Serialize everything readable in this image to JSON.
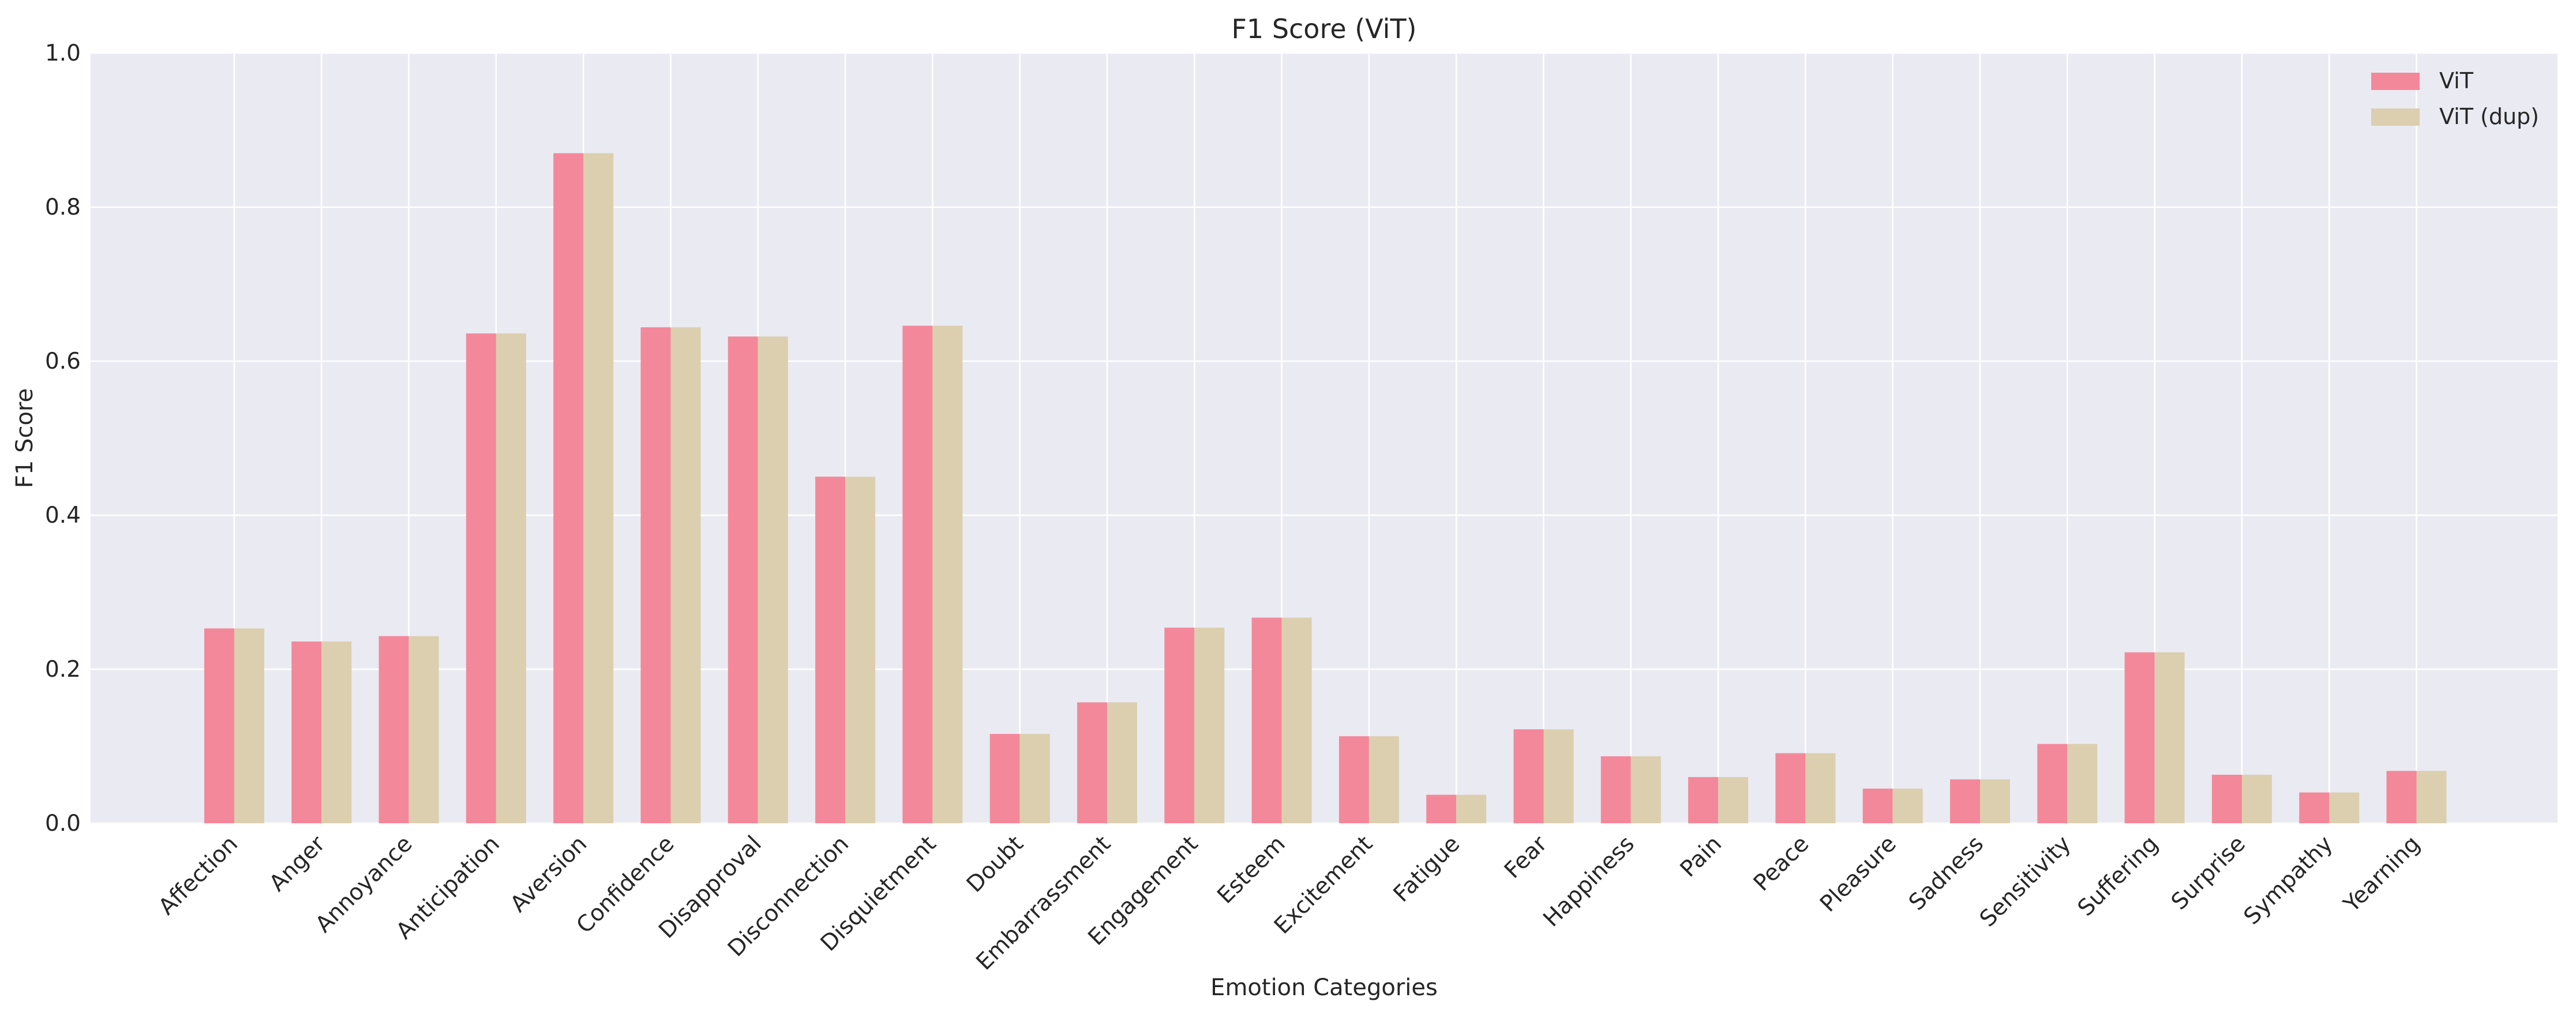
{
  "chart_data": {
    "type": "bar",
    "title": "F1 Score (ViT)",
    "xlabel": "Emotion Categories",
    "ylabel": "F1 Score",
    "ylim": [
      0,
      1.0
    ],
    "yticks": [
      "0.0",
      "0.2",
      "0.4",
      "0.6",
      "0.8",
      "1.0"
    ],
    "grid": true,
    "legend_position": "top-right",
    "categories": [
      "Affection",
      "Anger",
      "Annoyance",
      "Anticipation",
      "Aversion",
      "Confidence",
      "Disapproval",
      "Disconnection",
      "Disquietment",
      "Doubt",
      "Embarrassment",
      "Engagement",
      "Esteem",
      "Excitement",
      "Fatigue",
      "Fear",
      "Happiness",
      "Pain",
      "Peace",
      "Pleasure",
      "Sadness",
      "Sensitivity",
      "Suffering",
      "Surprise",
      "Sympathy",
      "Yearning"
    ],
    "series": [
      {
        "name": "ViT",
        "color": "#f4889b",
        "values": [
          0.253,
          0.236,
          0.243,
          0.636,
          0.87,
          0.644,
          0.632,
          0.45,
          0.646,
          0.116,
          0.157,
          0.254,
          0.267,
          0.113,
          0.037,
          0.122,
          0.087,
          0.06,
          0.091,
          0.045,
          0.057,
          0.103,
          0.222,
          0.063,
          0.04,
          0.068
        ]
      },
      {
        "name": "ViT (dup)",
        "color": "#dbcfaf",
        "values": [
          0.253,
          0.236,
          0.243,
          0.636,
          0.87,
          0.644,
          0.632,
          0.45,
          0.646,
          0.116,
          0.157,
          0.254,
          0.267,
          0.113,
          0.037,
          0.122,
          0.087,
          0.06,
          0.091,
          0.045,
          0.057,
          0.103,
          0.222,
          0.063,
          0.04,
          0.068
        ]
      }
    ],
    "colors": {
      "plot_background": "#eaeaf2",
      "grid": "#ffffff"
    }
  }
}
